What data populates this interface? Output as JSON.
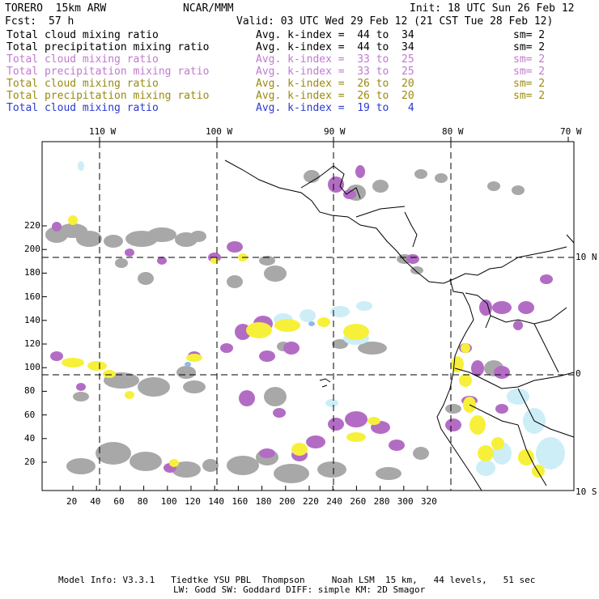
{
  "header": {
    "model": "TORERO  15km ARW",
    "org": "NCAR/MMM",
    "init": "Init: 18 UTC Sun 26 Feb 12",
    "fcst_label": "Fcst:",
    "fcst_value": "57 h",
    "valid": "Valid: 03 UTC Wed 29 Feb 12 (21 CST Tue 28 Feb 12)"
  },
  "legend": [
    {
      "field": "Total cloud mixing ratio",
      "kindex": "Avg. k-index =  44 to  34",
      "sm": "sm= 2",
      "color": "#000000"
    },
    {
      "field": "Total precipitation mixing ratio",
      "kindex": "Avg. k-index =  44 to  34",
      "sm": "sm= 2",
      "color": "#000000"
    },
    {
      "field": "Total cloud mixing ratio",
      "kindex": "Avg. k-index =  33 to  25",
      "sm": "sm= 2",
      "color": "#c07ad0"
    },
    {
      "field": "Total precipitation mixing ratio",
      "kindex": "Avg. k-index =  33 to  25",
      "sm": "sm= 2",
      "color": "#c07ad0"
    },
    {
      "field": "Total cloud mixing ratio",
      "kindex": "Avg. k-index =  26 to  20",
      "sm": "sm= 2",
      "color": "#9a8a10"
    },
    {
      "field": "Total precipitation mixing ratio",
      "kindex": "Avg. k-index =  26 to  20",
      "sm": "sm= 2",
      "color": "#9a8a10"
    },
    {
      "field": "Total cloud mixing ratio",
      "kindex": "Avg. k-index =  19 to   4",
      "sm": "",
      "color": "#2a3ad0"
    }
  ],
  "longitude_labels": [
    "110 W",
    "100 W",
    "90 W",
    "80 W",
    "70 W"
  ],
  "latitude_labels": [
    "10 N",
    "0",
    "10 S"
  ],
  "x_ticks": [
    "20",
    "40",
    "60",
    "80",
    "100",
    "120",
    "140",
    "160",
    "180",
    "200",
    "220",
    "240",
    "260",
    "280",
    "300",
    "320"
  ],
  "y_ticks": [
    "20",
    "40",
    "60",
    "80",
    "100",
    "120",
    "140",
    "160",
    "180",
    "200",
    "220"
  ],
  "colors": {
    "gray": "#a8a8a8",
    "purple": "#b36cc4",
    "yellow": "#f7f03a",
    "lightblue": "#cdeef7",
    "blue": "#8fb8ea"
  },
  "footer": {
    "line1": "Model Info: V3.3.1   Tiedtke YSU PBL  Thompson     Noah LSM  15 km,   44 levels,   51 sec",
    "line2": "LW: Godd SW: Goddard DIFF: simple KM: 2D Smagor"
  }
}
